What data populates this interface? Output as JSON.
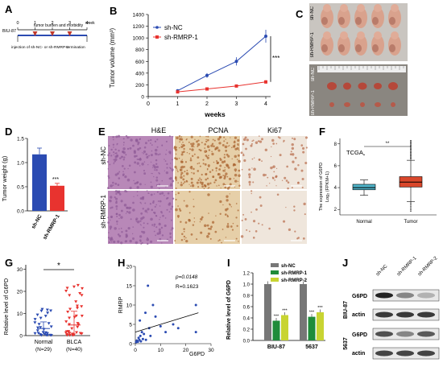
{
  "panel_letters": {
    "A": "A",
    "B": "B",
    "C": "C",
    "D": "D",
    "E": "E",
    "F": "F",
    "G": "G",
    "H": "H",
    "I": "I",
    "J": "J"
  },
  "panel_a": {
    "timeline_label": "tumor burden and morbidity",
    "week_label": "week",
    "ticks": [
      "0",
      "1",
      "2",
      "3",
      "4"
    ],
    "cell_label": "BIU-87",
    "injection_label": "injection of sh-NC- or sh-RMRP-1",
    "termination_label": "termination"
  },
  "panel_b": {
    "ylabel": "Tumor volume (mm³)",
    "xlabel": "weeks",
    "significance": "***",
    "y_ticks": [
      "0",
      "200",
      "400",
      "600",
      "800",
      "1000",
      "1200",
      "1400"
    ],
    "x_ticks": [
      "0",
      "1",
      "2",
      "3",
      "4"
    ]
  },
  "panel_c": {
    "row1_label": "sh-NC",
    "row2_label": "sh-RMRP-1",
    "row3_label": "sh-NC",
    "row4_label": "sh-RMRP-1"
  },
  "panel_d": {
    "ylabel": "Tumor weight (g)",
    "y_ticks": [
      "0.0",
      "0.5",
      "1.0",
      "1.5"
    ],
    "significance": "***"
  },
  "panel_e": {
    "col1": "H&E",
    "col2": "PCNA",
    "col3": "Ki67",
    "row1": "sh-NC",
    "row2": "sh-RMRP-1"
  },
  "panel_f": {
    "ylabel_line1": "The expression of G6PD",
    "ylabel_line2": "Log₂ (FPKM+1)",
    "dataset": "TCGA",
    "significance": "**",
    "y_ticks": [
      "2",
      "4",
      "6",
      "8"
    ],
    "categories": [
      "Normal",
      "Tumor"
    ]
  },
  "panel_g": {
    "ylabel": "Relative level of G6PD",
    "y_ticks": [
      "0",
      "10",
      "20",
      "30"
    ],
    "significance": "*",
    "cat1": "Normal",
    "cat1_n": "(N=29)",
    "cat2": "BLCA",
    "cat2_n": "(N=40)"
  },
  "panel_h": {
    "ylabel": "RMRP",
    "xlabel": "G6PD",
    "p_text": "p=0.0148",
    "r_text": "R=0.1623",
    "y_ticks": [
      "0",
      "5",
      "10",
      "15",
      "20"
    ],
    "x_ticks": [
      "0",
      "10",
      "20",
      "30"
    ]
  },
  "panel_i": {
    "ylabel": "Relative level of G6PD",
    "y_ticks": [
      "0.0",
      "0.2",
      "0.4",
      "0.6",
      "0.8",
      "1.0",
      "1.2"
    ],
    "legend": [
      "sh-NC",
      "sh-RMRP-1",
      "sh-RMRP-2"
    ],
    "groups": [
      "BIU-87",
      "5637"
    ],
    "significance": "***"
  },
  "panel_j": {
    "lanes": [
      "sh-NC",
      "sh-RMRP-1",
      "sh-RMRP-2"
    ],
    "cell1": "BIU-87",
    "cell2": "5637",
    "band_g6pd": "G6PD",
    "band_actin": "actin"
  },
  "colors": {
    "nc": "#2b4bb2",
    "rmrp1": "#e8332f",
    "rmrp1_green": "#1f8c3a",
    "rmrp2_yellow": "#c8d432",
    "box_normal": "#4fb3c9",
    "box_tumor": "#d9472b"
  },
  "chart_data": [
    {
      "type": "line",
      "title": "",
      "xlabel": "weeks",
      "ylabel": "Tumor volume (mm³)",
      "x": [
        1,
        2,
        3,
        4
      ],
      "ylim": [
        0,
        1400
      ],
      "series": [
        {
          "name": "sh-NC",
          "values": [
            100,
            360,
            600,
            1030
          ],
          "errors": [
            20,
            40,
            70,
            110
          ]
        },
        {
          "name": "sh-RMRP-1",
          "values": [
            80,
            130,
            180,
            250
          ],
          "errors": [
            10,
            15,
            20,
            30
          ]
        }
      ]
    },
    {
      "type": "bar",
      "title": "",
      "ylabel": "Tumor weight (g)",
      "ylim": [
        0,
        1.5
      ],
      "categories": [
        "sh-NC",
        "sh-RMRP-1"
      ],
      "values": [
        1.17,
        0.52
      ],
      "errors": [
        0.13,
        0.05
      ]
    },
    {
      "type": "box",
      "ylabel": "The expression of G6PD Log₂ (FPKM+1)",
      "categories": [
        "Normal",
        "Tumor"
      ],
      "medians": [
        4.0,
        4.5
      ],
      "q1": [
        3.8,
        4.05
      ],
      "q3": [
        4.3,
        5.0
      ],
      "whisker_low": [
        3.3,
        2.7
      ],
      "whisker_high": [
        4.7,
        6.5
      ]
    },
    {
      "type": "scatter",
      "ylabel": "Relative level of G6PD",
      "categories": [
        "Normal",
        "BLCA"
      ],
      "means": [
        3.2,
        4.8
      ],
      "sd": [
        3.0,
        6.2
      ],
      "ylim": [
        0,
        32
      ]
    },
    {
      "type": "scatter",
      "xlabel": "G6PD",
      "ylabel": "RMRP",
      "xlim": [
        0,
        30
      ],
      "ylim": [
        0,
        20
      ],
      "points": [
        [
          0.3,
          0.4
        ],
        [
          0.6,
          0.8
        ],
        [
          1,
          0.5
        ],
        [
          1.3,
          1.5
        ],
        [
          1.6,
          1
        ],
        [
          2,
          2
        ],
        [
          2.2,
          0.6
        ],
        [
          2.6,
          3
        ],
        [
          3,
          1.2
        ],
        [
          3.4,
          2.5
        ],
        [
          4,
          8
        ],
        [
          4.2,
          1
        ],
        [
          5,
          15
        ],
        [
          5.5,
          4
        ],
        [
          6,
          2
        ],
        [
          7,
          10
        ],
        [
          8,
          7
        ],
        [
          10,
          4.5
        ],
        [
          12,
          3
        ],
        [
          15,
          5
        ],
        [
          17,
          4
        ],
        [
          24,
          3
        ],
        [
          24,
          10
        ],
        [
          1.8,
          6
        ]
      ],
      "fit": [
        [
          0,
          3
        ],
        [
          25,
          8
        ]
      ]
    },
    {
      "type": "bar",
      "ylabel": "Relative level of G6PD",
      "ylim": [
        0,
        1.2
      ],
      "categories": [
        "BIU-87",
        "5637"
      ],
      "series": [
        {
          "name": "sh-NC",
          "values": [
            1.0,
            1.0
          ]
        },
        {
          "name": "sh-RMRP-1",
          "values": [
            0.35,
            0.42
          ]
        },
        {
          "name": "sh-RMRP-2",
          "values": [
            0.45,
            0.5
          ]
        }
      ]
    }
  ]
}
